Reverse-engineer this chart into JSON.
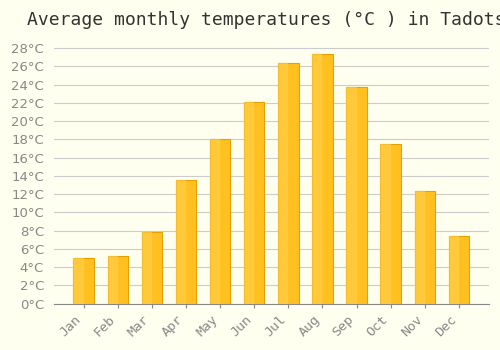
{
  "title": "Average monthly temperatures (°C ) in Tadotsu",
  "months": [
    "Jan",
    "Feb",
    "Mar",
    "Apr",
    "May",
    "Jun",
    "Jul",
    "Aug",
    "Sep",
    "Oct",
    "Nov",
    "Dec"
  ],
  "temperatures": [
    5.0,
    5.2,
    7.9,
    13.5,
    18.0,
    22.1,
    26.4,
    27.4,
    23.7,
    17.5,
    12.3,
    7.4
  ],
  "bar_color": "#FFC020",
  "bar_edge_color": "#E8A000",
  "background_color": "#FFFFF0",
  "grid_color": "#CCCCCC",
  "text_color": "#888888",
  "ylim": [
    0,
    29
  ],
  "ytick_step": 2,
  "title_fontsize": 13,
  "tick_fontsize": 9.5
}
